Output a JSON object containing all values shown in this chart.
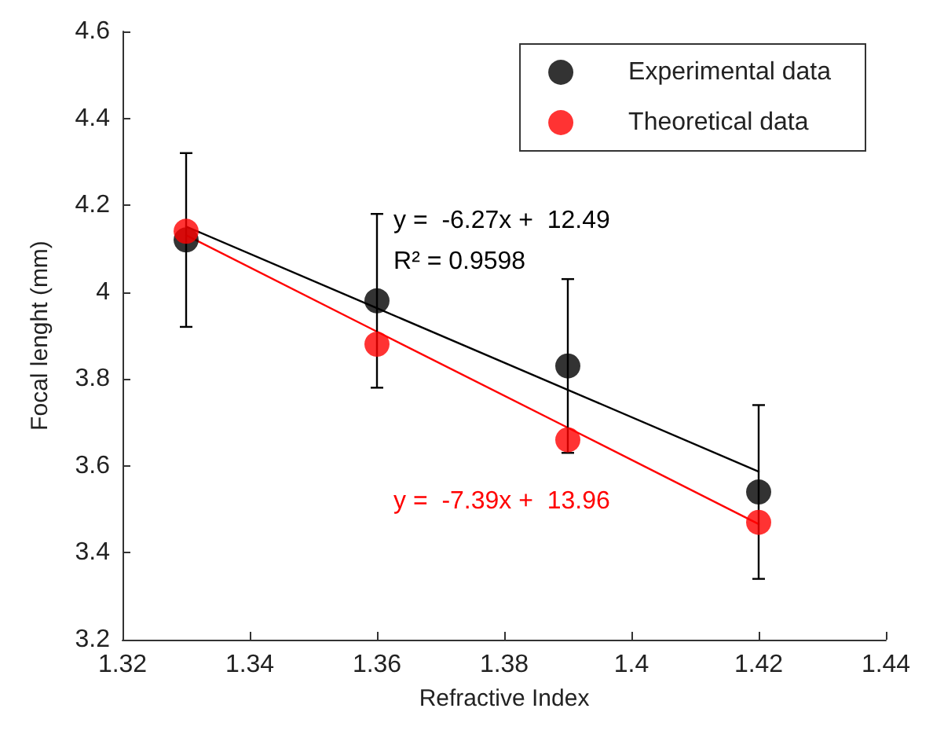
{
  "chart_data": {
    "type": "scatter",
    "xlabel": "Refractive Index",
    "ylabel": "Focal lenght (mm)",
    "xlim": [
      1.32,
      1.44
    ],
    "xticks": [
      1.32,
      1.34,
      1.36,
      1.38,
      {
        "value": 1.4,
        "label": "1.4"
      },
      1.42,
      1.44
    ],
    "ylim": [
      3.2,
      4.6
    ],
    "yticks": [
      3.2,
      3.4,
      3.6,
      3.8,
      {
        "value": 4,
        "label": "4"
      },
      4.2,
      4.4,
      4.6
    ],
    "x": [
      1.33,
      1.36,
      1.39,
      1.42
    ],
    "marker": "circle",
    "grid": false,
    "legend": "top right",
    "series": [
      {
        "name": "Experimental data",
        "color": "#000000",
        "values": [
          4.12,
          3.98,
          3.83,
          3.54
        ],
        "errors": [
          0.2,
          0.2,
          0.2,
          0.2
        ]
      },
      {
        "name": "Theoretical data",
        "color": "#ff0000",
        "values": [
          4.14,
          3.88,
          3.66,
          3.47
        ]
      },
      {
        "type": "line",
        "color": "#000000",
        "values": [
          4.151,
          3.963,
          3.775,
          3.587
        ],
        "marker": "none"
      },
      {
        "type": "line",
        "color": "#ff0000",
        "values": [
          4.131,
          3.909,
          3.688,
          3.466
        ],
        "marker": "none"
      }
    ],
    "annotations": [
      "y =  -6.27x +  12.49",
      "R² = 0.9598",
      "y =  -7.39x +  13.96"
    ]
  }
}
